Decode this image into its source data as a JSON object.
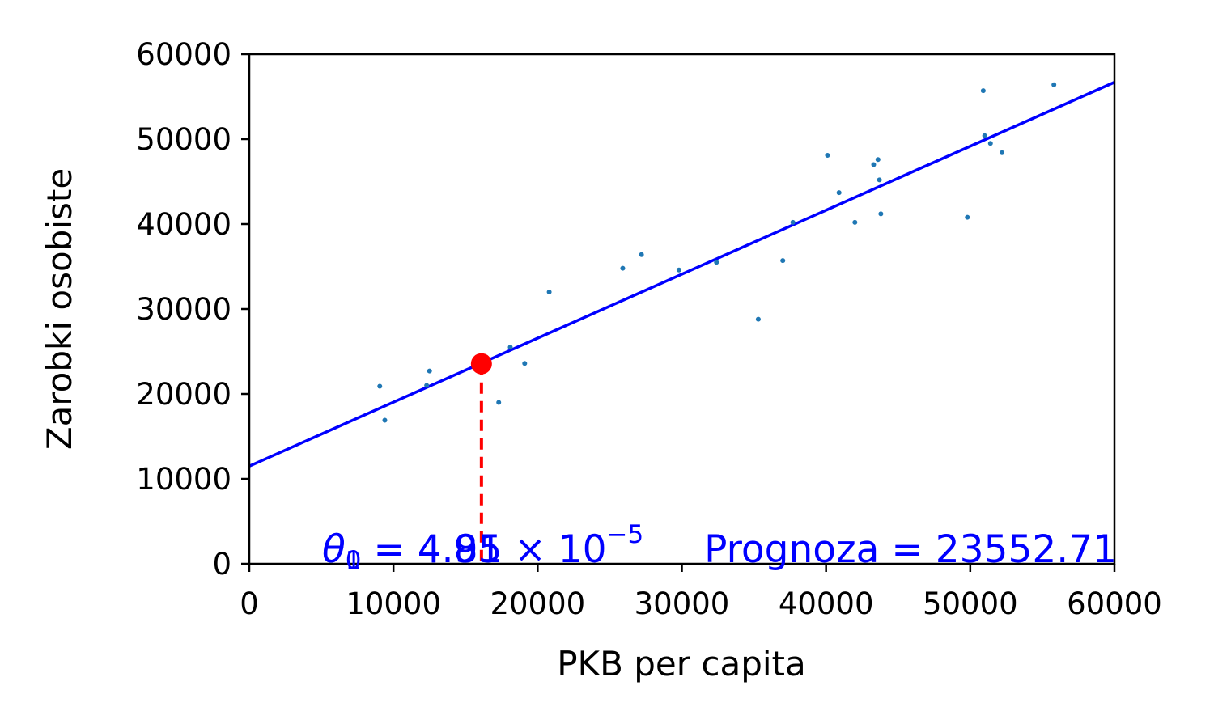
{
  "chart_data": {
    "type": "scatter",
    "xlabel": "PKB per capita",
    "ylabel": "Zarobki osobiste",
    "xlim": [
      0,
      60000
    ],
    "ylim": [
      0,
      60000
    ],
    "xticks": [
      0,
      10000,
      20000,
      30000,
      40000,
      50000,
      60000
    ],
    "yticks": [
      0,
      10000,
      20000,
      30000,
      40000,
      50000,
      60000
    ],
    "xtick_labels": [
      "0",
      "10000",
      "20000",
      "30000",
      "40000",
      "50000",
      "60000"
    ],
    "ytick_labels": [
      "0",
      "10000",
      "20000",
      "30000",
      "40000",
      "50000",
      "60000"
    ],
    "grid": false,
    "points": [
      {
        "x": 9050,
        "y": 20900
      },
      {
        "x": 9400,
        "y": 16900
      },
      {
        "x": 12300,
        "y": 21000
      },
      {
        "x": 12500,
        "y": 22700
      },
      {
        "x": 17300,
        "y": 19000
      },
      {
        "x": 18100,
        "y": 25500
      },
      {
        "x": 19100,
        "y": 23600
      },
      {
        "x": 20800,
        "y": 32000
      },
      {
        "x": 25900,
        "y": 34800
      },
      {
        "x": 27200,
        "y": 36400
      },
      {
        "x": 29800,
        "y": 34600
      },
      {
        "x": 32400,
        "y": 35500
      },
      {
        "x": 35300,
        "y": 28800
      },
      {
        "x": 37000,
        "y": 35700
      },
      {
        "x": 37700,
        "y": 40200
      },
      {
        "x": 40100,
        "y": 48100
      },
      {
        "x": 40900,
        "y": 43700
      },
      {
        "x": 42000,
        "y": 40200
      },
      {
        "x": 43300,
        "y": 47000
      },
      {
        "x": 43600,
        "y": 47600
      },
      {
        "x": 43700,
        "y": 45200
      },
      {
        "x": 43800,
        "y": 41200
      },
      {
        "x": 49800,
        "y": 40800
      },
      {
        "x": 50900,
        "y": 55700
      },
      {
        "x": 51000,
        "y": 50400
      },
      {
        "x": 51400,
        "y": 49500
      },
      {
        "x": 52200,
        "y": 48400
      },
      {
        "x": 55800,
        "y": 56400
      }
    ],
    "point_color": "#1f77b4",
    "regression_line": {
      "x": [
        0,
        60000
      ],
      "y": [
        11500,
        56700
      ],
      "color": "#0000ff"
    },
    "prediction_point": {
      "x": 16100,
      "y": 23552.71,
      "color": "#ff0000"
    },
    "annotations": {
      "theta0_prefix": "θ",
      "theta0_sub": "0",
      "theta0_value": " = 4.85",
      "theta1_prefix": "θ",
      "theta1_sub": "1",
      "theta1_value": " = 4.91 × 10",
      "theta1_exp": "−5",
      "prediction_label": "Prognoza = 23552.71"
    }
  }
}
